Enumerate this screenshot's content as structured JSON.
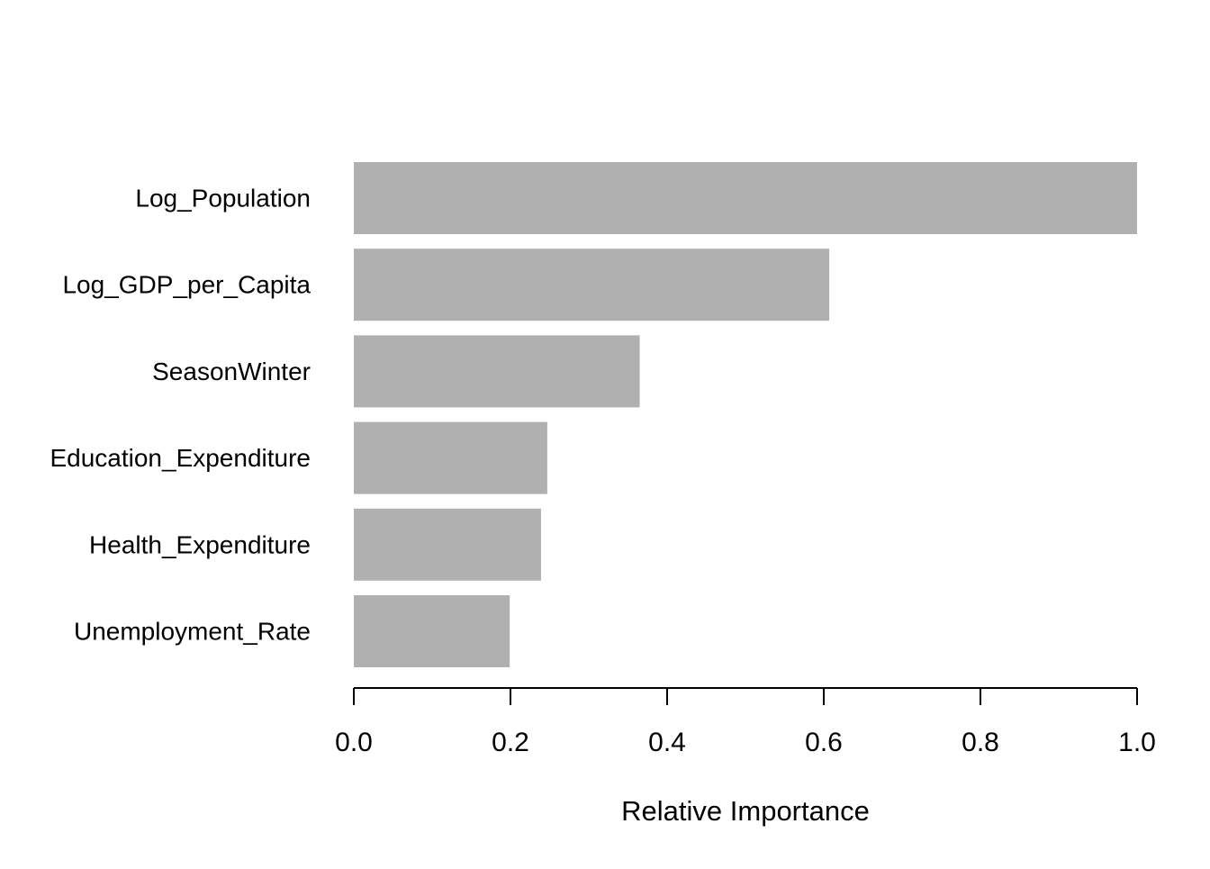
{
  "chart_data": {
    "type": "bar",
    "orientation": "horizontal",
    "categories": [
      "Log_Population",
      "Log_GDP_per_Capita",
      "SeasonWinter",
      "Education_Expenditure",
      "Health_Expenditure",
      "Unemployment_Rate"
    ],
    "values": [
      1.0,
      0.607,
      0.365,
      0.247,
      0.239,
      0.199
    ],
    "xlabel": "Relative Importance",
    "ylabel": "",
    "title": "",
    "xlim": [
      0,
      1
    ],
    "xticks": [
      0,
      0.2,
      0.4,
      0.6,
      0.8,
      1.0
    ],
    "xtick_labels": [
      "0.0",
      "0.2",
      "0.4",
      "0.6",
      "0.8",
      "1.0"
    ],
    "bar_color": "#b0b0b0",
    "axis_color": "#000000",
    "grid": false,
    "legend": "none"
  }
}
